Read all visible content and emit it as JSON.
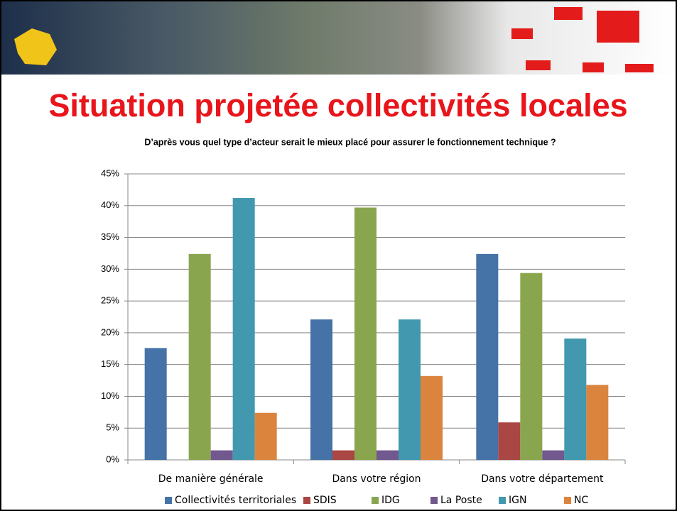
{
  "title": "Situation projetée collectivités locales",
  "chart_data": {
    "type": "bar",
    "title": "D’après vous quel type d’acteur serait le mieux placé pour assurer le fonctionnement technique ?",
    "categories": [
      "De manière générale",
      "Dans votre région",
      "Dans votre département"
    ],
    "series": [
      {
        "name": "Collectivités territoriales",
        "color": "#4572a7",
        "values": [
          17.6,
          22.1,
          32.4
        ]
      },
      {
        "name": "SDIS",
        "color": "#aa4643",
        "values": [
          0,
          1.5,
          5.9
        ]
      },
      {
        "name": "IDG",
        "color": "#89a54e",
        "values": [
          32.4,
          39.7,
          29.4
        ]
      },
      {
        "name": "La Poste",
        "color": "#71588f",
        "values": [
          1.5,
          1.5,
          1.5
        ]
      },
      {
        "name": "IGN",
        "color": "#4198af",
        "values": [
          41.2,
          22.1,
          19.1
        ]
      },
      {
        "name": "NC",
        "color": "#db843d",
        "values": [
          7.4,
          13.2,
          11.8
        ]
      }
    ],
    "ylim": [
      0,
      45
    ],
    "yticks": [
      {
        "value": 0,
        "label": "0%"
      },
      {
        "value": 5,
        "label": "5%"
      },
      {
        "value": 10,
        "label": "10%"
      },
      {
        "value": 15,
        "label": "15%"
      },
      {
        "value": 20,
        "label": "20%"
      },
      {
        "value": 25,
        "label": "25%"
      },
      {
        "value": 30,
        "label": "30%"
      },
      {
        "value": 35,
        "label": "35%"
      },
      {
        "value": 40,
        "label": "40%"
      },
      {
        "value": 45,
        "label": "45%"
      }
    ],
    "grid": true,
    "legend": "bottom"
  }
}
